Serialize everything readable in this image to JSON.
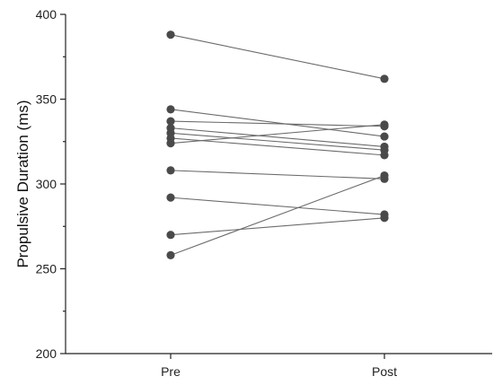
{
  "chart_data": {
    "type": "scatter",
    "subtype": "paired-dot-plot",
    "title": "",
    "xlabel": "",
    "ylabel": "Propulsive Duration (ms)",
    "categories": [
      "Pre",
      "Post"
    ],
    "ylim": [
      200,
      400
    ],
    "yticks": [
      200,
      250,
      300,
      350,
      400
    ],
    "yminor_step": 25,
    "grid": false,
    "legend": "none",
    "colors": {
      "marker": "#4a4a4a",
      "line": "#6b6b6b",
      "axis": "#222222"
    },
    "pairs": [
      {
        "pre": 388,
        "post": 362
      },
      {
        "pre": 344,
        "post": 328
      },
      {
        "pre": 337,
        "post": 334
      },
      {
        "pre": 333,
        "post": 322
      },
      {
        "pre": 330,
        "post": 320
      },
      {
        "pre": 327,
        "post": 317
      },
      {
        "pre": 324,
        "post": 335
      },
      {
        "pre": 308,
        "post": 303
      },
      {
        "pre": 292,
        "post": 282
      },
      {
        "pre": 270,
        "post": 280
      },
      {
        "pre": 258,
        "post": 305
      }
    ]
  }
}
